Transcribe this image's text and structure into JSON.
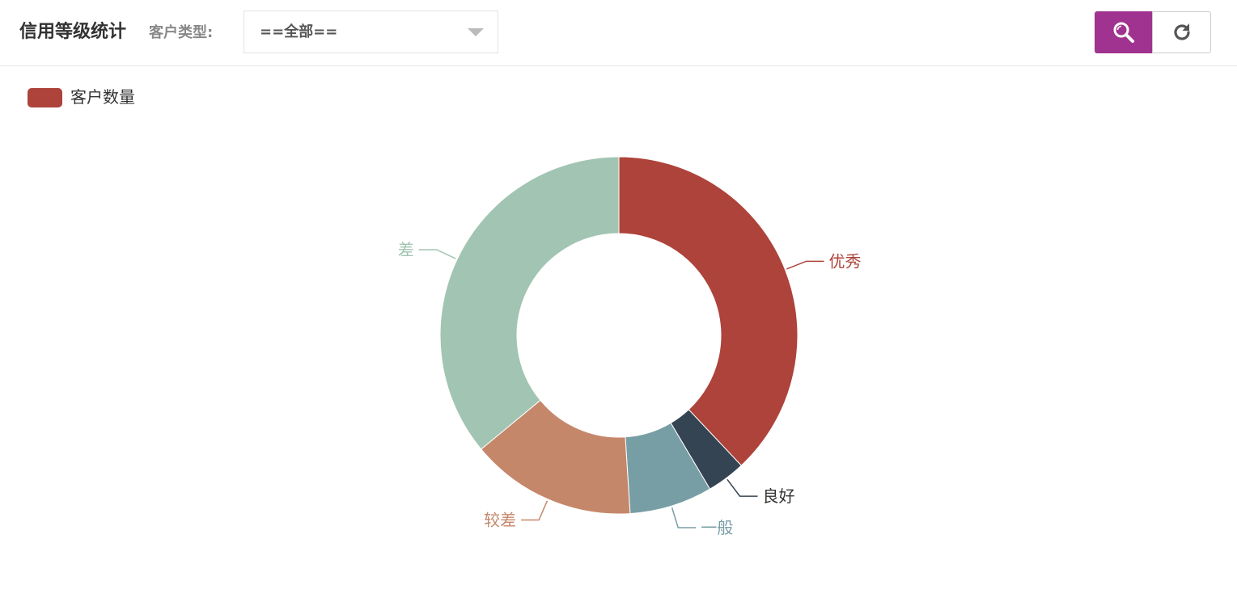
{
  "header": {
    "title": "信用等级统计",
    "filter_label": "客户类型:",
    "select_value": "==全部==",
    "search_icon": "search-icon",
    "refresh_icon": "refresh-icon"
  },
  "colors": {
    "accent": "#a0338f",
    "slices": [
      "#ad433a",
      "#344453",
      "#789ea5",
      "#c5876a",
      "#a2c4b2"
    ]
  },
  "chart_data": {
    "type": "pie",
    "donut": true,
    "legend": [
      "客户数量"
    ],
    "legend_placement": "top-left",
    "series_name": "客户数量",
    "categories": [
      "优秀",
      "良好",
      "一般",
      "较差",
      "差"
    ],
    "values": [
      38,
      3.5,
      7.5,
      15,
      36
    ]
  }
}
